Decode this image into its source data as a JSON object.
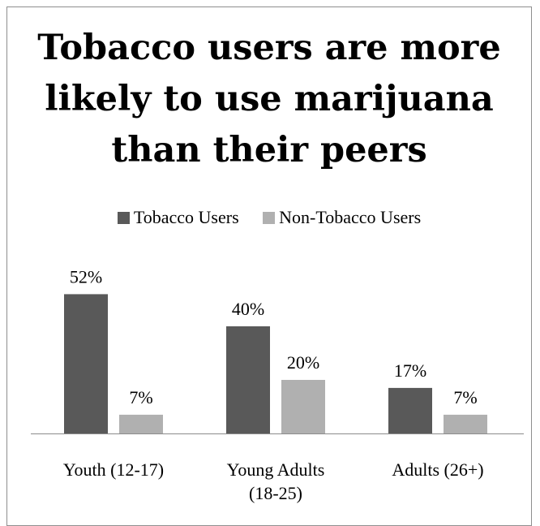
{
  "chart_data": {
    "type": "bar",
    "title_lines": [
      "Tobacco users are more",
      "likely to use marijuana",
      "than their peers"
    ],
    "categories": [
      [
        "Youth (12-17)"
      ],
      [
        "Young Adults",
        "(18-25)"
      ],
      [
        "Adults (26+)"
      ]
    ],
    "series": [
      {
        "name": "Tobacco Users",
        "values": [
          52,
          40,
          17
        ],
        "labels": [
          "52%",
          "40%",
          "17%"
        ],
        "color": "#595959"
      },
      {
        "name": "Non-Tobacco Users",
        "values": [
          7,
          20,
          7
        ],
        "labels": [
          "7%",
          "20%",
          "7%"
        ],
        "color": "#b0b0b0"
      }
    ],
    "unit": "%",
    "ylim": [
      0,
      60
    ],
    "grid": false,
    "legend_position": "top"
  }
}
